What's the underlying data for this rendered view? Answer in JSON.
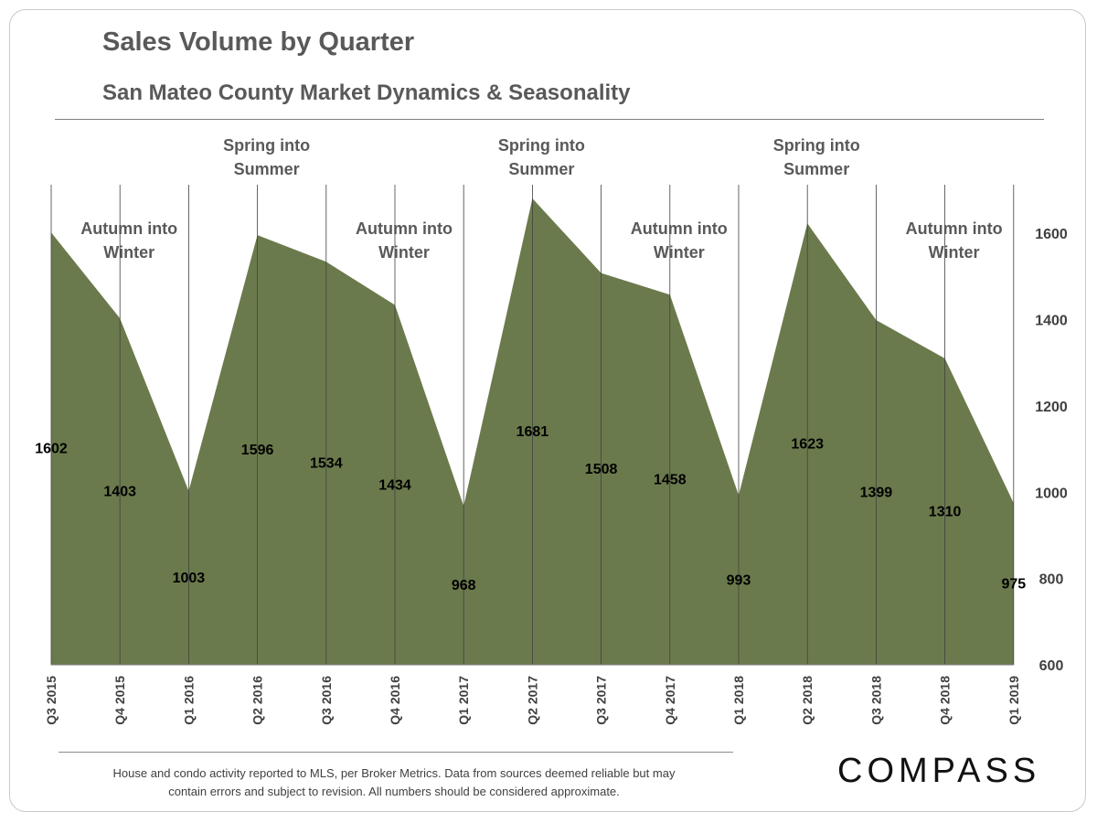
{
  "header": {
    "title": "Sales Volume by Quarter",
    "subtitle": "San Mateo County Market Dynamics & Seasonality"
  },
  "chart_data": {
    "type": "area",
    "categories": [
      "Q3 2015",
      "Q4 2015",
      "Q1 2016",
      "Q2 2016",
      "Q3 2016",
      "Q4 2016",
      "Q1 2017",
      "Q2 2017",
      "Q3 2017",
      "Q4 2017",
      "Q1 2018",
      "Q2 2018",
      "Q3 2018",
      "Q4 2018",
      "Q1 2019"
    ],
    "values": [
      1602,
      1403,
      1003,
      1596,
      1534,
      1434,
      968,
      1681,
      1508,
      1458,
      993,
      1623,
      1399,
      1310,
      975
    ],
    "ylim": [
      600,
      1700
    ],
    "yticks": [
      600,
      800,
      1000,
      1200,
      1400,
      1600
    ],
    "y_axis_side": "right",
    "fill_color": "#6b7a4c",
    "annotations": [
      {
        "text": [
          "Autumn into",
          "Winter"
        ],
        "category": "Q4 2015"
      },
      {
        "text": [
          "Spring into",
          "Summer"
        ],
        "category": "Q2 2016"
      },
      {
        "text": [
          "Autumn into",
          "Winter"
        ],
        "category": "Q4 2016"
      },
      {
        "text": [
          "Spring into",
          "Summer"
        ],
        "category": "Q2 2017"
      },
      {
        "text": [
          "Autumn into",
          "Winter"
        ],
        "category": "Q4 2017"
      },
      {
        "text": [
          "Spring into",
          "Summer"
        ],
        "category": "Q2 2018"
      },
      {
        "text": [
          "Autumn into",
          "Winter"
        ],
        "category": "Q4 2018"
      }
    ]
  },
  "footer": {
    "note_line1": "House and condo activity reported to MLS, per Broker Metrics. Data from sources deemed  reliable but may",
    "note_line2": "contain errors and subject to revision. All numbers should be considered approximate.",
    "logo": "COMPASS"
  }
}
